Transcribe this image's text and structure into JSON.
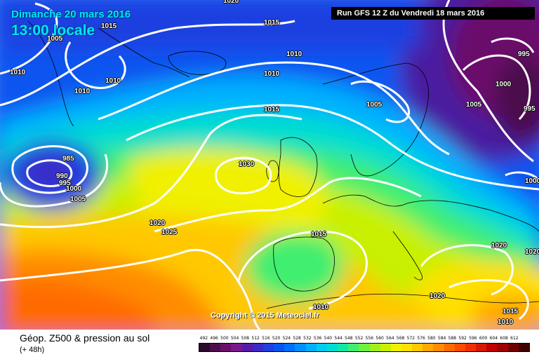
{
  "header": {
    "date": "Dimanche 20 mars 2016",
    "time": "13:00 locale",
    "run": "Run GFS 12 Z du Vendredi 18 mars 2016"
  },
  "copyright": "Copyright © 2015 Meteociel.fr",
  "legend": {
    "title": "Géop. Z500 & pression au sol",
    "subtitle": "(+ 48h)",
    "scale_values": [
      "492",
      "496",
      "500",
      "504",
      "508",
      "512",
      "516",
      "520",
      "524",
      "528",
      "532",
      "536",
      "540",
      "544",
      "548",
      "552",
      "556",
      "560",
      "564",
      "568",
      "572",
      "576",
      "580",
      "584",
      "588",
      "592",
      "596",
      "600",
      "604",
      "608",
      "612"
    ],
    "scale_colors": [
      "#2b0a2b",
      "#4b0f4b",
      "#6a106a",
      "#7a1a8a",
      "#5a1aa8",
      "#3b2ac8",
      "#1f3fe0",
      "#0a55f0",
      "#0070ff",
      "#0090ff",
      "#00b0ff",
      "#00ccee",
      "#00ddd0",
      "#10e8a8",
      "#40ee70",
      "#70f040",
      "#a0f020",
      "#c8f000",
      "#f0f000",
      "#ffe000",
      "#ffc800",
      "#ffa800",
      "#ff8c00",
      "#ff6a00",
      "#ff4a00",
      "#f03000",
      "#d81800",
      "#c00000",
      "#a00000",
      "#700000",
      "#400000"
    ]
  },
  "isobar_labels": [
    {
      "text": "1020"
    },
    {
      "text": "1015"
    },
    {
      "text": "1005"
    },
    {
      "text": "1015"
    },
    {
      "text": "1010"
    },
    {
      "text": "1010"
    },
    {
      "text": "1010"
    },
    {
      "text": "1010"
    },
    {
      "text": "1010"
    },
    {
      "text": "985"
    },
    {
      "text": "990"
    },
    {
      "text": "995"
    },
    {
      "text": "1000"
    },
    {
      "text": "1005"
    },
    {
      "text": "1015"
    },
    {
      "text": "1010"
    },
    {
      "text": "1010"
    },
    {
      "text": "1015"
    },
    {
      "text": "1030"
    },
    {
      "text": "1005"
    },
    {
      "text": "995"
    },
    {
      "text": "1000"
    },
    {
      "text": "1005"
    },
    {
      "text": "995"
    },
    {
      "text": "1000"
    },
    {
      "text": "1020"
    },
    {
      "text": "1025"
    },
    {
      "text": "1015"
    },
    {
      "text": "1020"
    },
    {
      "text": "1020"
    },
    {
      "text": "1020"
    },
    {
      "text": "1010"
    },
    {
      "text": "1015"
    },
    {
      "text": "1010"
    }
  ]
}
